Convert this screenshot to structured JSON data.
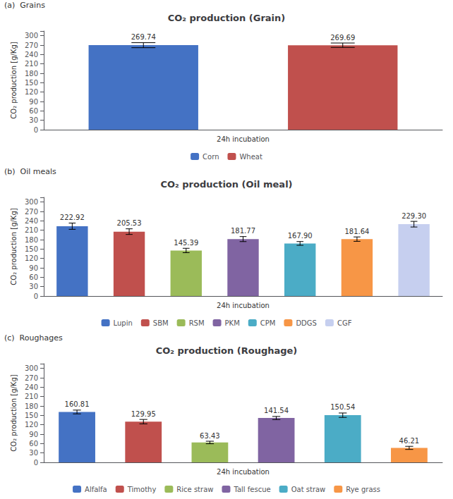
{
  "chart_data": [
    {
      "type": "bar",
      "title": "CO₂ production (Grain)",
      "subtitle": "(a)  Grains",
      "categories": [
        "Corn",
        "Wheat"
      ],
      "values": [
        269.74,
        269.69
      ],
      "value_labels": [
        "269.74",
        "269.69"
      ],
      "errors": [
        8.0,
        7.0
      ],
      "colors": [
        "#4472C4",
        "#C0504D"
      ],
      "xlabel": "24h incubation",
      "ylabel": "CO₂ production [g/Kg]",
      "ylim": [
        0,
        315
      ],
      "yticks": [
        0,
        30,
        60,
        90,
        120,
        150,
        180,
        210,
        240,
        270,
        300
      ],
      "grid": false,
      "legend": "bottom",
      "data_labels": true,
      "tick_labels": "y"
    },
    {
      "type": "bar",
      "title": "CO₂ production (Oil meal)",
      "subtitle": "(b)  Oil meals",
      "categories": [
        "Lupin",
        "SBM",
        "RSM",
        "PKM",
        "CPM",
        "DDGS",
        "CGF"
      ],
      "values": [
        222.92,
        205.53,
        145.39,
        181.77,
        167.9,
        181.64,
        229.3
      ],
      "value_labels": [
        "222.92",
        "205.53",
        "145.39",
        "181.77",
        "167.90",
        "181.64",
        "229.30"
      ],
      "errors": [
        10.0,
        9.0,
        7.0,
        8.0,
        6.0,
        7.0,
        9.0
      ],
      "colors": [
        "#4472C4",
        "#C0504D",
        "#9BBB59",
        "#8064A2",
        "#4BACC6",
        "#F79646",
        "#C6CFEF"
      ],
      "xlabel": "24h incubation",
      "ylabel": "CO₂ production [g/Kg]",
      "ylim": [
        0,
        315
      ],
      "yticks": [
        0,
        30,
        60,
        90,
        120,
        150,
        180,
        210,
        240,
        270,
        300
      ],
      "grid": false,
      "legend": "bottom",
      "data_labels": true,
      "tick_labels": "y"
    },
    {
      "type": "bar",
      "title": "CO₂ production (Roughage)",
      "subtitle": "(c)  Roughages",
      "categories": [
        "Alfalfa",
        "Timothy",
        "Rice straw",
        "Tall fescue",
        "Oat straw",
        "Rye grass"
      ],
      "values": [
        160.81,
        129.95,
        63.43,
        141.54,
        150.54,
        46.21
      ],
      "value_labels": [
        "160.81",
        "129.95",
        "63.43",
        "141.54",
        "150.54",
        "46.21"
      ],
      "errors": [
        6.0,
        7.0,
        4.0,
        5.0,
        7.0,
        5.0
      ],
      "colors": [
        "#4472C4",
        "#C0504D",
        "#9BBB59",
        "#8064A2",
        "#4BACC6",
        "#F79646"
      ],
      "xlabel": "24h incubation",
      "ylabel": "CO₂ production [g/Kg]",
      "ylim": [
        0,
        315
      ],
      "yticks": [
        0,
        30,
        60,
        90,
        120,
        150,
        180,
        210,
        240,
        270,
        300
      ],
      "grid": false,
      "legend": "bottom",
      "data_labels": true,
      "tick_labels": "y"
    }
  ]
}
